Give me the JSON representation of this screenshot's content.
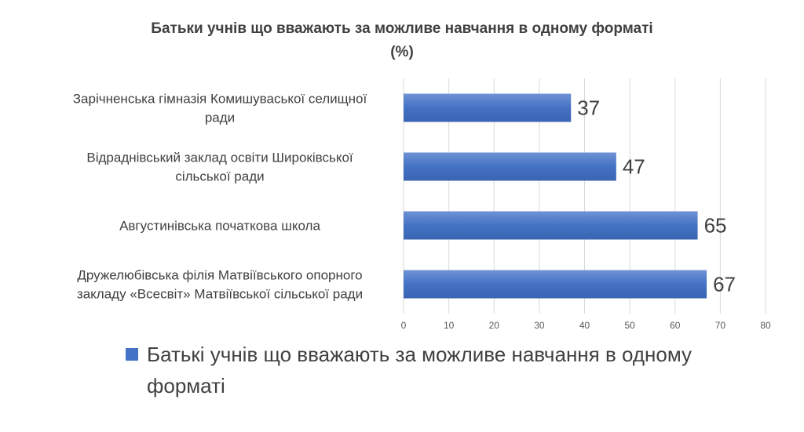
{
  "chart_data": {
    "type": "bar",
    "orientation": "horizontal",
    "title": "Батьки учнів що вважають за можливе навчання в одному форматі",
    "title_line2": "(%)",
    "categories": [
      [
        "Зарічненська гімназія Комишуваської селищної",
        "ради"
      ],
      [
        "Відраднівський заклад освіти Широківської",
        "сільської ради"
      ],
      [
        "Августинівська початкова школа"
      ],
      [
        "Дружелюбівська філія Матвіївського опорного",
        "закладу «Всесвіт» Матвіївської сільської ради"
      ]
    ],
    "series": [
      {
        "name": "Батькі учнів що вважають за можливе навчання в одному форматі",
        "values": [
          37,
          47,
          65,
          67
        ],
        "color": "#4472c4"
      }
    ],
    "xlim": [
      0,
      80
    ],
    "xticks": [
      0,
      10,
      20,
      30,
      40,
      50,
      60,
      70,
      80
    ],
    "grid": true,
    "legend_position": "bottom",
    "data_labels": true
  }
}
